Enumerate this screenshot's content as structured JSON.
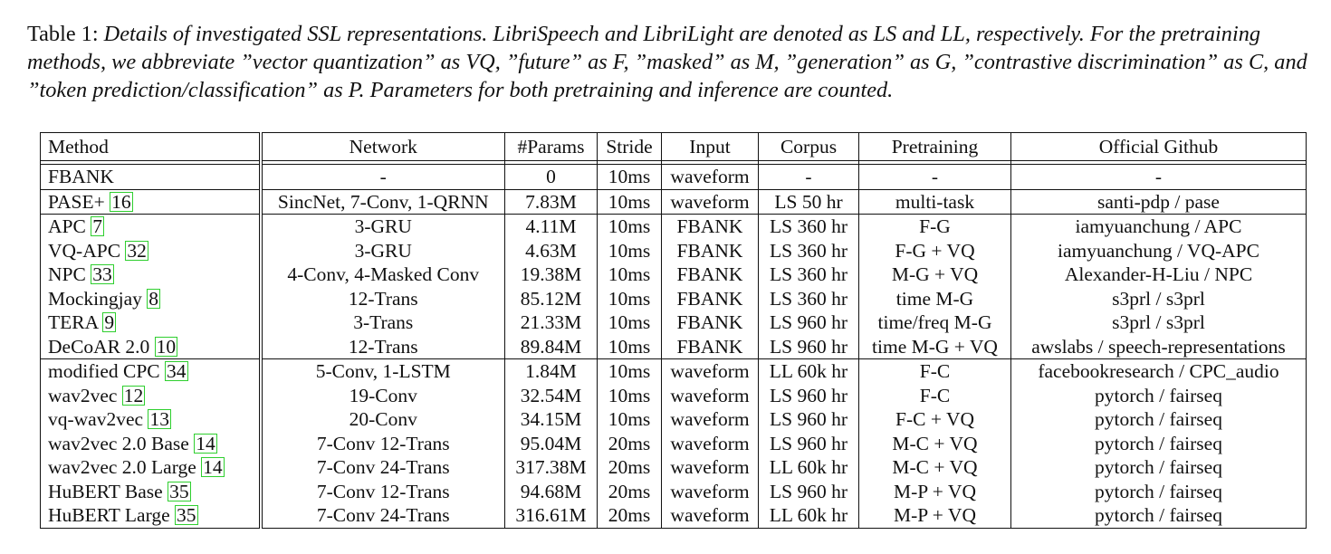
{
  "caption": {
    "label": "Table 1:",
    "text": "Details of investigated SSL representations. LibriSpeech and LibriLight are denoted as LS and LL, respectively. For the pretraining methods, we abbreviate ”vector quantization” as VQ, ”future” as F, ”masked” as M, ”generation” as G, ”contrastive discrimination” as C, and ”token prediction/classification” as P. Parameters for both pretraining and inference are counted."
  },
  "table": {
    "headers": [
      "Method",
      "Network",
      "#Params",
      "Stride",
      "Input",
      "Corpus",
      "Pretraining",
      "Official Github"
    ],
    "groups": [
      [
        {
          "method": "FBANK",
          "ref": "",
          "network": "-",
          "params": "0",
          "stride": "10ms",
          "input": "waveform",
          "corpus": "-",
          "pretraining": "-",
          "github": "-"
        }
      ],
      [
        {
          "method": "PASE+",
          "ref": "16",
          "network": "SincNet, 7-Conv, 1-QRNN",
          "params": "7.83M",
          "stride": "10ms",
          "input": "waveform",
          "corpus": "LS 50 hr",
          "pretraining": "multi-task",
          "github": "santi-pdp / pase"
        }
      ],
      [
        {
          "method": "APC",
          "ref": "7",
          "network": "3-GRU",
          "params": "4.11M",
          "stride": "10ms",
          "input": "FBANK",
          "corpus": "LS 360 hr",
          "pretraining": "F-G",
          "github": "iamyuanchung / APC"
        },
        {
          "method": "VQ-APC",
          "ref": "32",
          "network": "3-GRU",
          "params": "4.63M",
          "stride": "10ms",
          "input": "FBANK",
          "corpus": "LS 360 hr",
          "pretraining": "F-G + VQ",
          "github": "iamyuanchung / VQ-APC"
        },
        {
          "method": "NPC",
          "ref": "33",
          "network": "4-Conv, 4-Masked Conv",
          "params": "19.38M",
          "stride": "10ms",
          "input": "FBANK",
          "corpus": "LS 360 hr",
          "pretraining": "M-G + VQ",
          "github": "Alexander-H-Liu / NPC"
        },
        {
          "method": "Mockingjay",
          "ref": "8",
          "network": "12-Trans",
          "params": "85.12M",
          "stride": "10ms",
          "input": "FBANK",
          "corpus": "LS 360 hr",
          "pretraining": "time M-G",
          "github": "s3prl / s3prl"
        },
        {
          "method": "TERA",
          "ref": "9",
          "network": "3-Trans",
          "params": "21.33M",
          "stride": "10ms",
          "input": "FBANK",
          "corpus": "LS 960 hr",
          "pretraining": "time/freq M-G",
          "github": "s3prl / s3prl"
        },
        {
          "method": "DeCoAR 2.0",
          "ref": "10",
          "network": "12-Trans",
          "params": "89.84M",
          "stride": "10ms",
          "input": "FBANK",
          "corpus": "LS 960 hr",
          "pretraining": "time M-G + VQ",
          "github": "awslabs / speech-representations"
        }
      ],
      [
        {
          "method": "modified CPC",
          "ref": "34",
          "network": "5-Conv, 1-LSTM",
          "params": "1.84M",
          "stride": "10ms",
          "input": "waveform",
          "corpus": "LL 60k hr",
          "pretraining": "F-C",
          "github": "facebookresearch / CPC_audio"
        },
        {
          "method": "wav2vec",
          "ref": "12",
          "network": "19-Conv",
          "params": "32.54M",
          "stride": "10ms",
          "input": "waveform",
          "corpus": "LS 960 hr",
          "pretraining": "F-C",
          "github": "pytorch / fairseq"
        },
        {
          "method": "vq-wav2vec",
          "ref": "13",
          "network": "20-Conv",
          "params": "34.15M",
          "stride": "10ms",
          "input": "waveform",
          "corpus": "LS 960 hr",
          "pretraining": "F-C + VQ",
          "github": "pytorch / fairseq"
        },
        {
          "method": "wav2vec 2.0 Base",
          "ref": "14",
          "network": "7-Conv 12-Trans",
          "params": "95.04M",
          "stride": "20ms",
          "input": "waveform",
          "corpus": "LS 960 hr",
          "pretraining": "M-C + VQ",
          "github": "pytorch / fairseq"
        },
        {
          "method": "wav2vec 2.0 Large",
          "ref": "14",
          "network": "7-Conv 24-Trans",
          "params": "317.38M",
          "stride": "20ms",
          "input": "waveform",
          "corpus": "LL 60k hr",
          "pretraining": "M-C + VQ",
          "github": "pytorch / fairseq"
        },
        {
          "method": "HuBERT Base",
          "ref": "35",
          "network": "7-Conv 12-Trans",
          "params": "94.68M",
          "stride": "20ms",
          "input": "waveform",
          "corpus": "LS 960 hr",
          "pretraining": "M-P + VQ",
          "github": "pytorch / fairseq"
        },
        {
          "method": "HuBERT Large",
          "ref": "35",
          "network": "7-Conv 24-Trans",
          "params": "316.61M",
          "stride": "20ms",
          "input": "waveform",
          "corpus": "LL 60k hr",
          "pretraining": "M-P + VQ",
          "github": "pytorch / fairseq"
        }
      ]
    ]
  },
  "colors": {
    "citation_box": "#2fcf2f",
    "text": "#111111"
  }
}
